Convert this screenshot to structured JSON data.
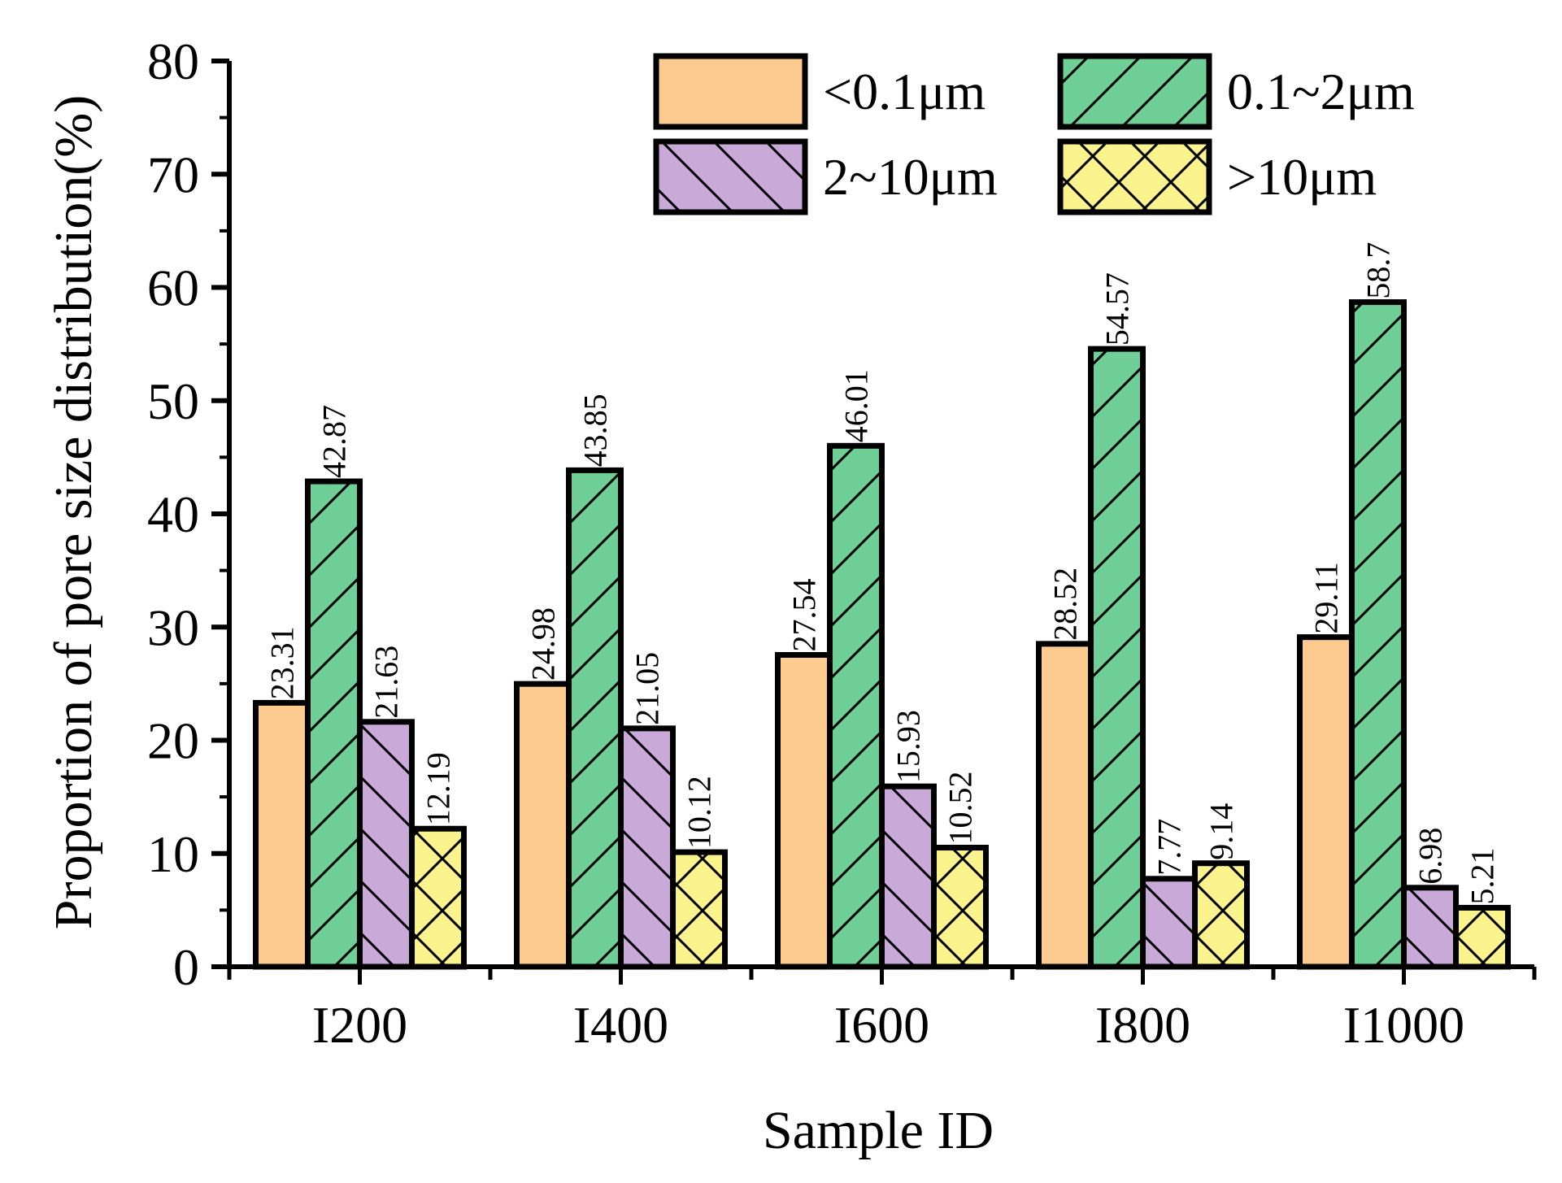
{
  "chart_data": {
    "type": "bar",
    "title": "",
    "xlabel": "Sample ID",
    "ylabel": "Proportion of pore size distribution(%)",
    "ylim": [
      0,
      80
    ],
    "yticks": [
      0,
      10,
      20,
      30,
      40,
      50,
      60,
      70,
      80
    ],
    "grid": false,
    "legend_position": "top-right",
    "categories": [
      "I200",
      "I400",
      "I600",
      "I800",
      "I1000"
    ],
    "series": [
      {
        "name": "<0.1μm",
        "color": "#FDCB90",
        "pattern": "none",
        "values": [
          23.31,
          24.98,
          27.54,
          28.52,
          29.11
        ],
        "labels": [
          "23.31",
          "24.98",
          "27.54",
          "28.52",
          "29.11"
        ]
      },
      {
        "name": "0.1~2μm",
        "color": "#6FCF97",
        "pattern": "forward-diagonal",
        "values": [
          42.87,
          43.85,
          46.01,
          54.57,
          58.7
        ],
        "labels": [
          "42.87",
          "43.85",
          "46.01",
          "54.57",
          "58.7"
        ]
      },
      {
        "name": "2~10μm",
        "color": "#C9A9D8",
        "pattern": "backward-diagonal",
        "values": [
          21.63,
          21.05,
          15.93,
          7.77,
          6.98
        ],
        "labels": [
          "21.63",
          "21.05",
          "15.93",
          "7.77",
          "6.98"
        ]
      },
      {
        "name": ">10μm",
        "color": "#FAF28C",
        "pattern": "cross",
        "values": [
          12.19,
          10.12,
          10.52,
          9.14,
          5.21
        ],
        "labels": [
          "12.19",
          "10.12",
          "10.52",
          "9.14",
          "5.21"
        ]
      }
    ]
  }
}
